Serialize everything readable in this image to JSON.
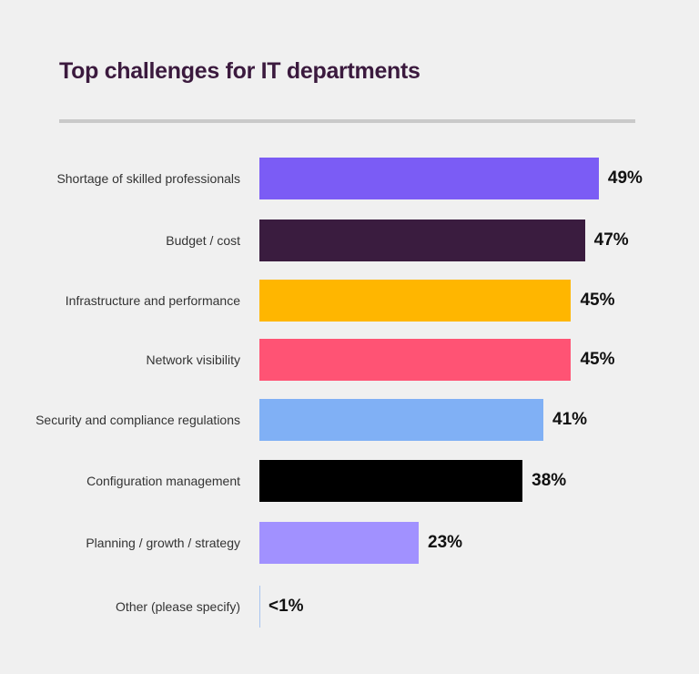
{
  "chart_data": {
    "type": "bar",
    "orientation": "horizontal",
    "title": "Top challenges for IT departments",
    "categories": [
      "Shortage of skilled professionals",
      "Budget / cost",
      "Infrastructure and performance",
      "Network visibility",
      "Security and compliance regulations",
      "Configuration management",
      "Planning / growth / strategy",
      "Other (please specify)"
    ],
    "values": [
      49,
      47,
      45,
      45,
      41,
      38,
      23,
      0
    ],
    "data_labels": [
      "49%",
      "47%",
      "45%",
      "45%",
      "41%",
      "38%",
      "23%",
      "<1%"
    ],
    "colors": [
      "#7b5cf5",
      "#3a1c3f",
      "#ffb600",
      "#ff5374",
      "#80b0f5",
      "#000000",
      "#a191ff",
      "#a8c4f0"
    ],
    "unit": "%",
    "grid": false,
    "legend": "none"
  }
}
